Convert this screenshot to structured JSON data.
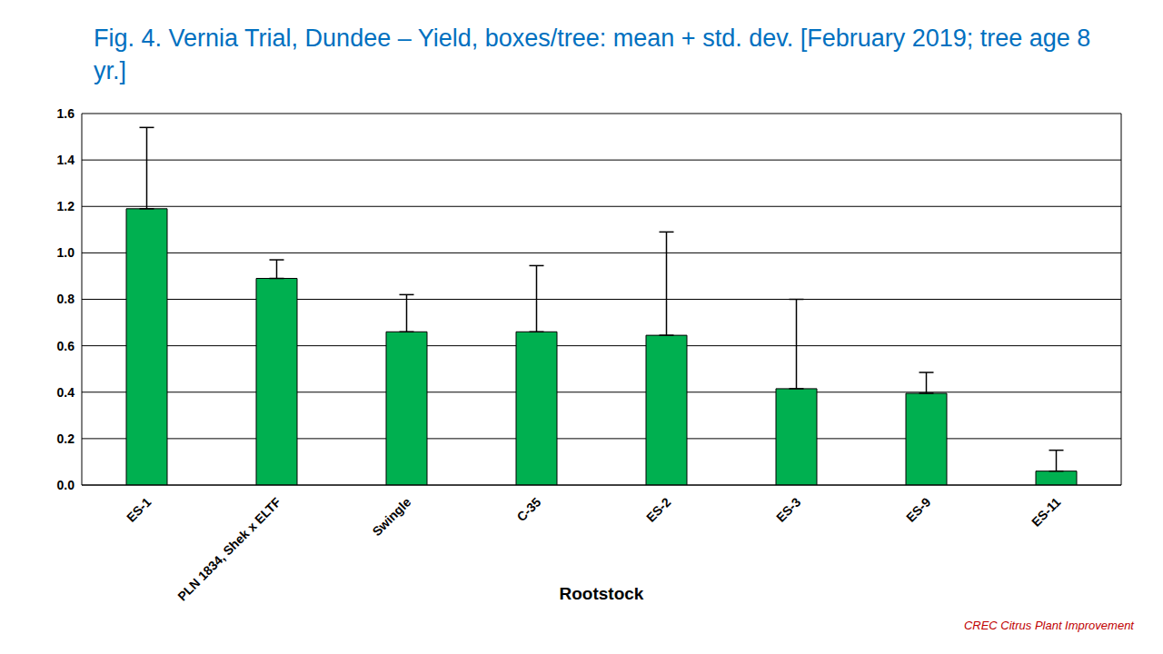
{
  "chart_data": {
    "type": "bar",
    "title": "Fig. 4. Vernia Trial, Dundee – Yield, boxes/tree: mean + std. dev. [February 2019; tree age 8 yr.]",
    "x_label": "Rootstock",
    "annotation": "CREC Citrus Plant Improvement",
    "categories": [
      "ES-1",
      "PLN 1834, Shek x ELTF",
      "Swingle",
      "C-35",
      "ES-2",
      "ES-3",
      "ES-9",
      "ES-11"
    ],
    "values": [
      1.19,
      0.89,
      0.66,
      0.66,
      0.645,
      0.415,
      0.395,
      0.06
    ],
    "error": [
      0.35,
      0.08,
      0.16,
      0.285,
      0.445,
      0.385,
      0.09,
      0.09
    ],
    "color": "#00B050",
    "ylim": [
      0,
      1.6
    ],
    "yticks": [
      {
        "value": 0,
        "label": "0.0"
      },
      0.2,
      0.4,
      0.6,
      0.8,
      {
        "value": 1,
        "label": "1.0"
      },
      1.2,
      1.4,
      1.6
    ],
    "grid": true
  }
}
